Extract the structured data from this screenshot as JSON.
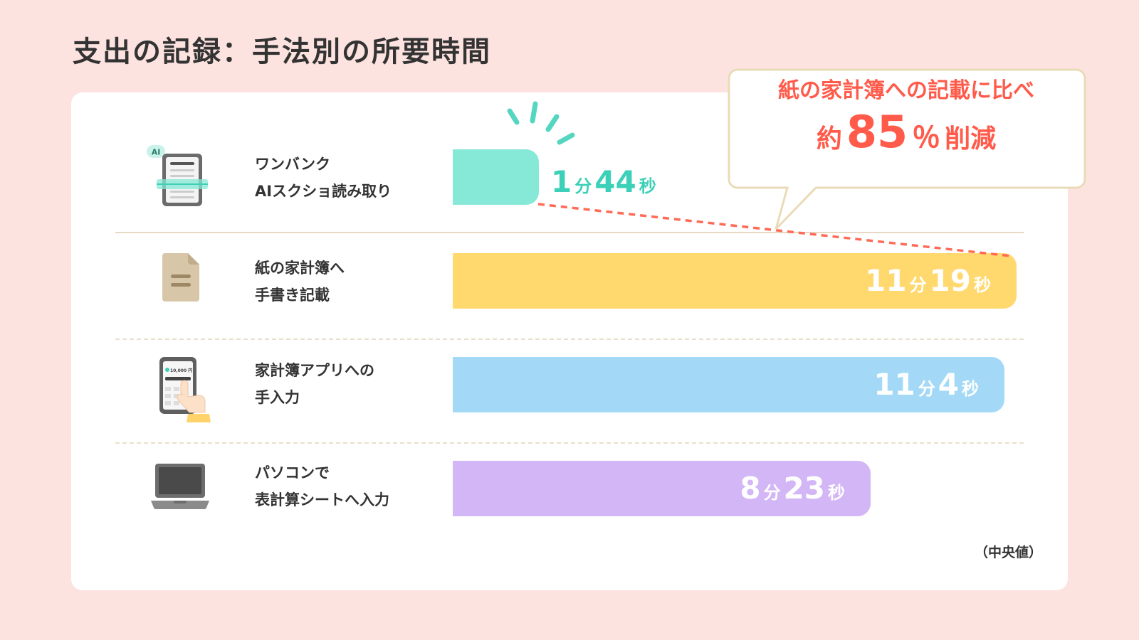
{
  "title": "支出の記録：手法別の所要時間",
  "note": "（中央値）",
  "callout": {
    "line1": "紙の家計簿への記載に比べ",
    "prefix": "約",
    "value": "85",
    "unit": "％",
    "suffix": "削減"
  },
  "icons": {
    "ai_badge": "AI",
    "phone_amount": "10,000 円"
  },
  "colors": {
    "background": "#fde3df",
    "accent": "#ff5a4a",
    "ai_bar": "#86e8d6",
    "paper_bar": "#ffd86e",
    "app_bar": "#a3d9f7",
    "pc_bar": "#d3b6f6"
  },
  "rows": [
    {
      "label_1": "ワンバンク",
      "label_2": "AIスクショ読み取り",
      "min": "1",
      "min_unit": "分",
      "sec": "44",
      "sec_unit": "秒"
    },
    {
      "label_1": "紙の家計簿へ",
      "label_2": "手書き記載",
      "min": "11",
      "min_unit": "分",
      "sec": "19",
      "sec_unit": "秒"
    },
    {
      "label_1": "家計簿アプリへの",
      "label_2": "手入力",
      "min": "11",
      "min_unit": "分",
      "sec": "4",
      "sec_unit": "秒"
    },
    {
      "label_1": "パソコンで",
      "label_2": "表計算シートへ入力",
      "min": "8",
      "min_unit": "分",
      "sec": "23",
      "sec_unit": "秒"
    }
  ],
  "chart_data": {
    "type": "bar",
    "orientation": "horizontal",
    "title": "支出の記録：手法別の所要時間",
    "categories": [
      "ワンバンク AIスクショ読み取り",
      "紙の家計簿へ 手書き記載",
      "家計簿アプリへの 手入力",
      "パソコンで 表計算シートへ入力"
    ],
    "values": [
      104,
      679,
      664,
      503
    ],
    "value_unit": "seconds",
    "value_labels": [
      "1分44秒",
      "11分19秒",
      "11分4秒",
      "8分23秒"
    ],
    "colors": [
      "#86e8d6",
      "#ffd86e",
      "#a3d9f7",
      "#d3b6f6"
    ],
    "annotation": "紙の家計簿への記載に比べ 約85％削減",
    "grid": false
  }
}
